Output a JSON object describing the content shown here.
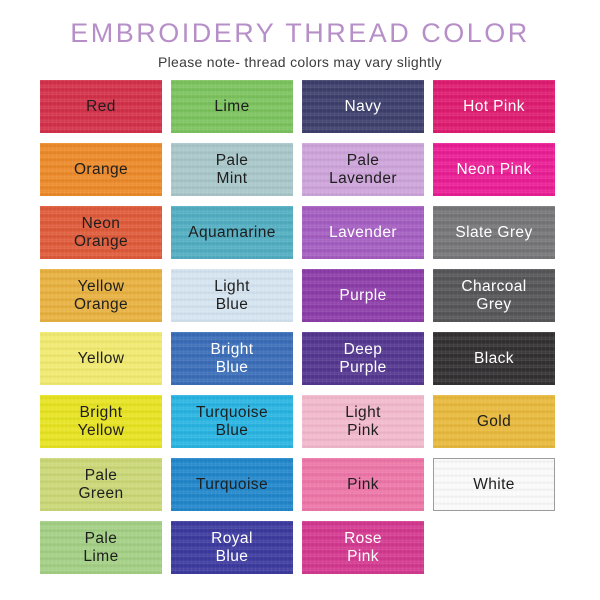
{
  "header": {
    "title": "EMBROIDERY THREAD COLOR",
    "subtitle": "Please note- thread colors may vary slightly",
    "title_color": "#b78fc8",
    "subtitle_color": "#3b3b3b"
  },
  "grid": {
    "columns": 4,
    "swatches": [
      {
        "label": "Red",
        "color": "#d53049",
        "text_color": "#1e1e1e"
      },
      {
        "label": "Lime",
        "color": "#7cc45f",
        "text_color": "#1e1e1e"
      },
      {
        "label": "Navy",
        "color": "#3d3f6d",
        "text_color": "#ffffff"
      },
      {
        "label": "Hot Pink",
        "color": "#df1b70",
        "text_color": "#ffffff"
      },
      {
        "label": "Orange",
        "color": "#ee8a28",
        "text_color": "#1e1e1e"
      },
      {
        "label": "Pale\nMint",
        "color": "#aac8cb",
        "text_color": "#1e1e1e"
      },
      {
        "label": "Pale\nLavender",
        "color": "#cfa5dc",
        "text_color": "#1e1e1e"
      },
      {
        "label": "Neon Pink",
        "color": "#eb1d95",
        "text_color": "#ffffff"
      },
      {
        "label": "Neon\nOrange",
        "color": "#e15a39",
        "text_color": "#1e1e1e"
      },
      {
        "label": "Aquamarine",
        "color": "#52aec2",
        "text_color": "#1e1e1e"
      },
      {
        "label": "Lavender",
        "color": "#a55ec2",
        "text_color": "#ffffff"
      },
      {
        "label": "Slate Grey",
        "color": "#767678",
        "text_color": "#ffffff"
      },
      {
        "label": "Yellow\nOrange",
        "color": "#eab23f",
        "text_color": "#1e1e1e"
      },
      {
        "label": "Light\nBlue",
        "color": "#d6e6f2",
        "text_color": "#1e1e1e"
      },
      {
        "label": "Purple",
        "color": "#8d3caa",
        "text_color": "#ffffff"
      },
      {
        "label": "Charcoal\nGrey",
        "color": "#565557",
        "text_color": "#ffffff"
      },
      {
        "label": "Yellow",
        "color": "#f3ec70",
        "text_color": "#1e1e1e"
      },
      {
        "label": "Bright\nBlue",
        "color": "#3a6db8",
        "text_color": "#ffffff"
      },
      {
        "label": "Deep\nPurple",
        "color": "#533690",
        "text_color": "#ffffff"
      },
      {
        "label": "Black",
        "color": "#333032",
        "text_color": "#ffffff"
      },
      {
        "label": "Bright\nYellow",
        "color": "#e9e520",
        "text_color": "#1e1e1e"
      },
      {
        "label": "Turquoise\nBlue",
        "color": "#29b5e3",
        "text_color": "#1e1e1e"
      },
      {
        "label": "Light\nPink",
        "color": "#f4bace",
        "text_color": "#1e1e1e"
      },
      {
        "label": "Gold",
        "color": "#e9ba3d",
        "text_color": "#1e1e1e"
      },
      {
        "label": "Pale\nGreen",
        "color": "#cdd977",
        "text_color": "#1e1e1e"
      },
      {
        "label": "Turquoise",
        "color": "#2187cb",
        "text_color": "#1e1e1e"
      },
      {
        "label": "Pink",
        "color": "#ef76a9",
        "text_color": "#1e1e1e"
      },
      {
        "label": "White",
        "color": "#fcfcfc",
        "text_color": "#1e1e1e",
        "border": true
      },
      {
        "label": "Pale\nLime",
        "color": "#a4d185",
        "text_color": "#1e1e1e"
      },
      {
        "label": "Royal\nBlue",
        "color": "#3c3a9e",
        "text_color": "#ffffff"
      },
      {
        "label": "Rose\nPink",
        "color": "#d53890",
        "text_color": "#ffffff"
      }
    ]
  }
}
